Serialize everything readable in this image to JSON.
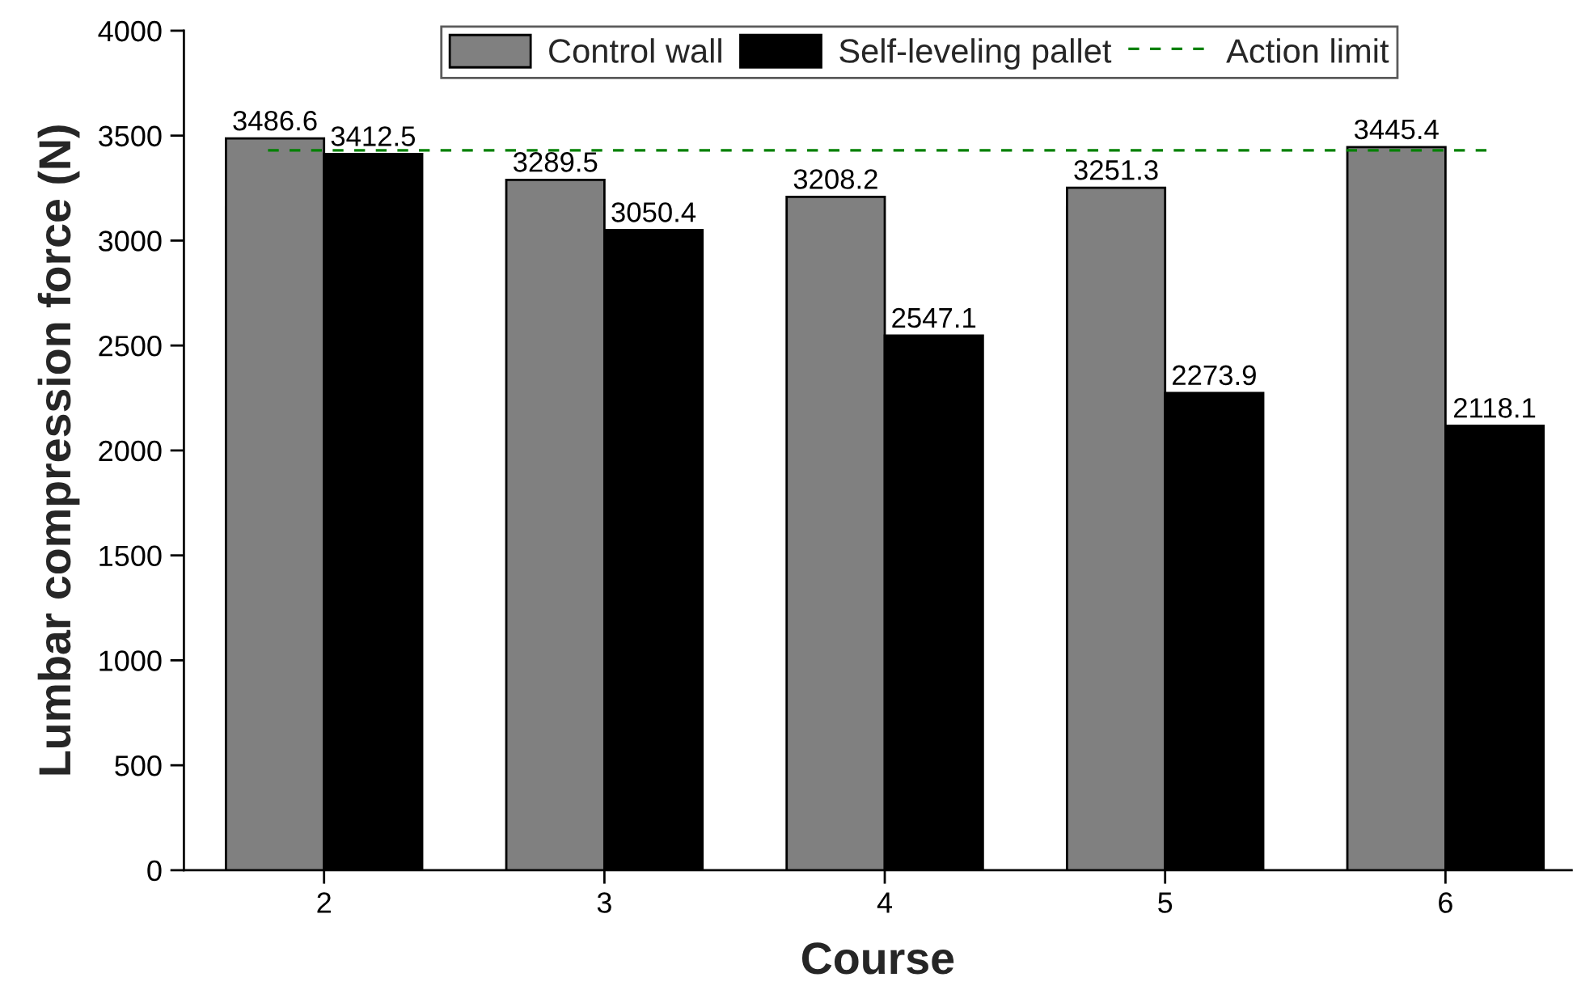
{
  "chart_data": {
    "type": "bar",
    "xlabel": "Course",
    "ylabel": "Lumbar compression force (N)",
    "categories": [
      "2",
      "3",
      "4",
      "5",
      "6"
    ],
    "series": [
      {
        "name": "Control wall",
        "color": "#808080",
        "values": [
          3486.6,
          3289.5,
          3208.2,
          3251.3,
          3445.4
        ]
      },
      {
        "name": "Self-leveling pallet",
        "color": "#000000",
        "values": [
          3412.5,
          3050.4,
          2547.1,
          2273.9,
          2118.1
        ]
      }
    ],
    "ylim": [
      0,
      4000
    ],
    "yticks": [
      0,
      500,
      1000,
      1500,
      2000,
      2500,
      3000,
      3500,
      4000
    ],
    "data_labels": true,
    "ref_lines": [
      {
        "axis": "y",
        "value": 3430,
        "label": "Action limit",
        "color": "#008000",
        "line_style": "dashed"
      }
    ],
    "legend": "top",
    "grid": false
  }
}
